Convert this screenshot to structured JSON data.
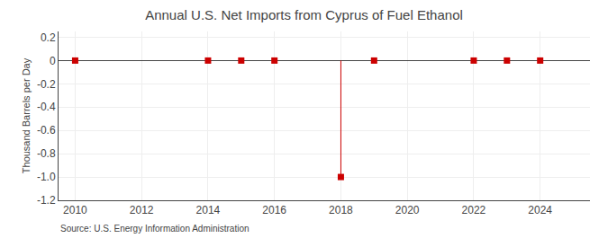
{
  "chart_data": {
    "type": "scatter",
    "title": "Annual U.S. Net Imports from Cyprus of Fuel Ethanol",
    "ylabel": "Thousand Barrels per Day",
    "annotations": [
      "Source: U.S. Energy Information Administration"
    ],
    "x": [
      2010,
      2014,
      2015,
      2016,
      2018,
      2019,
      2022,
      2023,
      2024
    ],
    "values": [
      0,
      0,
      0,
      0,
      -1.0,
      0,
      0,
      0,
      0
    ],
    "color": "#cc0000",
    "marker": "square",
    "xlim": [
      2009.5,
      2025.5
    ],
    "xticks": [
      2010,
      2012,
      2014,
      2016,
      2018,
      2020,
      2022,
      2024
    ],
    "ylim": [
      -1.2,
      0.25
    ],
    "yticks": [
      0.2,
      0,
      -0.2,
      -0.4,
      -0.6,
      -0.8,
      {
        "value": -1.0,
        "label": "-1.0"
      },
      -1.2
    ],
    "grid": true
  }
}
